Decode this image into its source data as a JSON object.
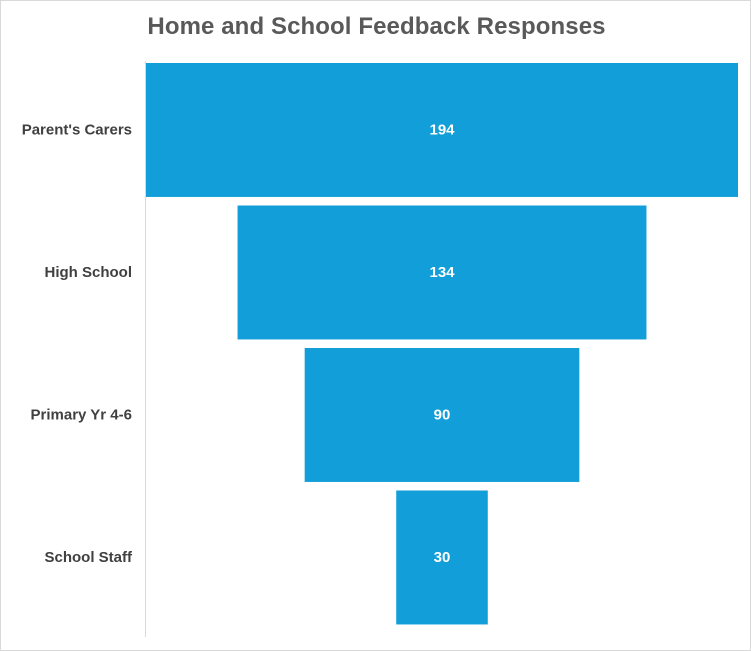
{
  "chart_data": {
    "type": "bar",
    "subtype": "funnel",
    "title": "Home and School Feedback Responses",
    "categories": [
      "Parent's Carers",
      "High School",
      "Primary Yr 4-6",
      "School Staff"
    ],
    "values": [
      194,
      134,
      90,
      30
    ],
    "data_labels": [
      "194",
      "134",
      "90",
      "30"
    ],
    "xlabel": "",
    "ylabel": "",
    "grid": false,
    "legend": "none",
    "bar_color": "#129ed8"
  }
}
